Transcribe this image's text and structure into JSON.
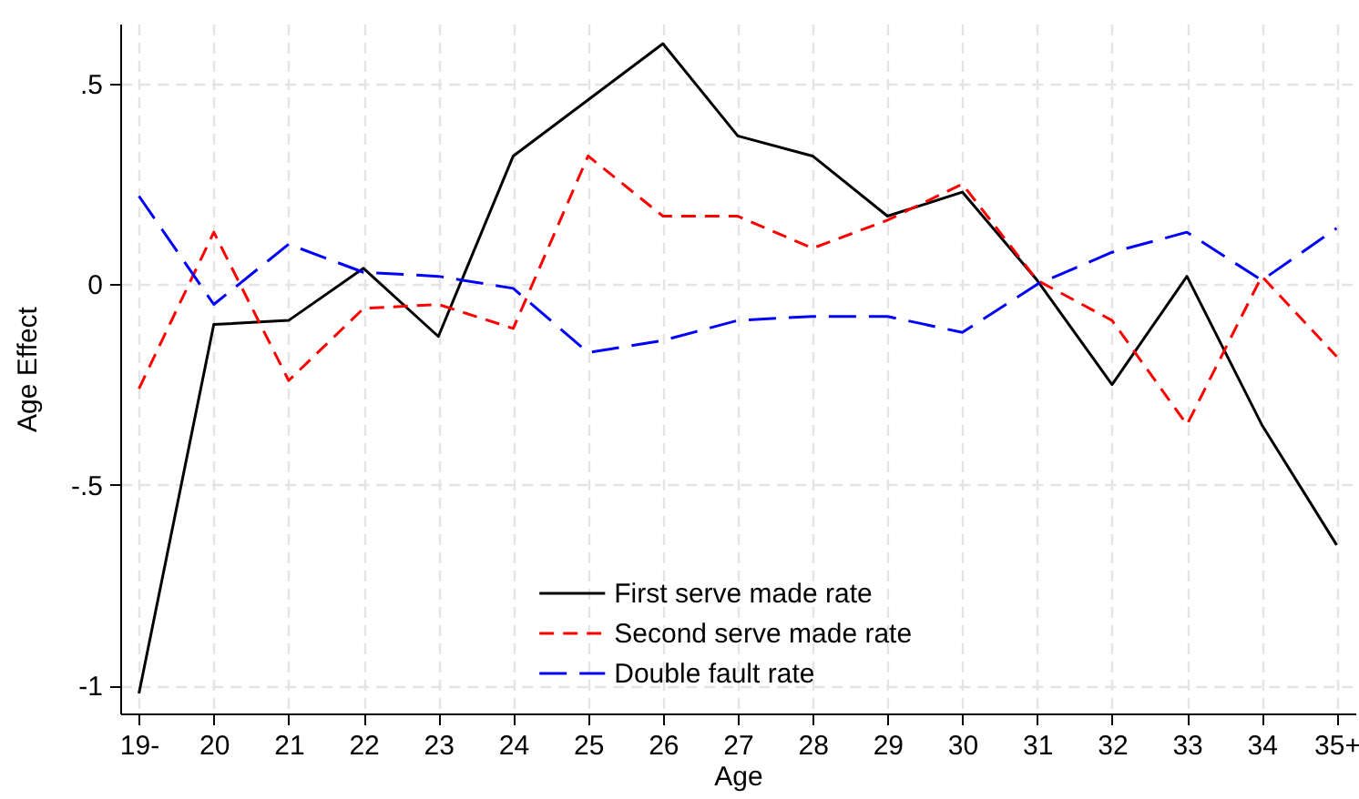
{
  "chart_data": {
    "type": "line",
    "xlabel": "Age",
    "ylabel": "Age Effect",
    "categories": [
      "19-",
      "20",
      "21",
      "22",
      "23",
      "24",
      "25",
      "26",
      "27",
      "28",
      "29",
      "30",
      "31",
      "32",
      "33",
      "34",
      "35+"
    ],
    "series": [
      {
        "name": "First serve made rate",
        "color": "#000000",
        "line_style": "solid",
        "values": [
          -1.02,
          -0.1,
          -0.09,
          0.04,
          -0.13,
          0.32,
          0.46,
          0.6,
          0.37,
          0.32,
          0.17,
          0.23,
          0.01,
          -0.25,
          0.02,
          -0.35,
          -0.65
        ]
      },
      {
        "name": "Second serve made rate",
        "color": "#ff0000",
        "line_style": "dashed",
        "values": [
          -0.26,
          0.13,
          -0.24,
          -0.06,
          -0.05,
          -0.11,
          0.32,
          0.17,
          0.17,
          0.09,
          0.16,
          0.25,
          0.01,
          -0.09,
          -0.35,
          0.02,
          -0.18
        ]
      },
      {
        "name": "Double fault rate",
        "color": "#0000ff",
        "line_style": "dashed",
        "values": [
          0.22,
          -0.05,
          0.1,
          0.03,
          0.02,
          -0.01,
          -0.17,
          -0.14,
          -0.09,
          -0.08,
          -0.08,
          -0.12,
          0.0,
          0.08,
          0.13,
          0.01,
          0.14
        ]
      }
    ],
    "ylim": [
      -1.07,
      0.65
    ],
    "yticks": [
      {
        "value": 0.5,
        "label": ".5"
      },
      0,
      {
        "value": -0.5,
        "label": "-.5"
      },
      -1
    ],
    "grid": true,
    "legend": "bottom"
  }
}
